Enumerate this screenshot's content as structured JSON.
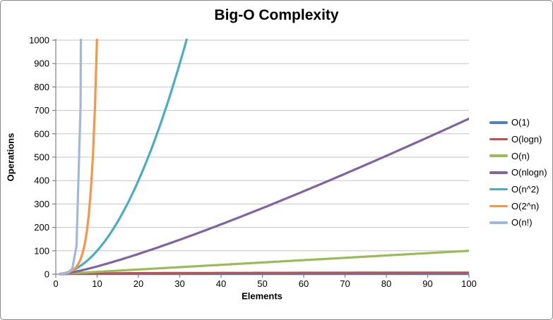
{
  "chart_data": {
    "type": "line",
    "title": "Big-O Complexity",
    "xlabel": "Elements",
    "ylabel": "Operations",
    "xlim": [
      0,
      100
    ],
    "ylim": [
      0,
      1000
    ],
    "x_ticks": [
      0,
      10,
      20,
      30,
      40,
      50,
      60,
      70,
      80,
      90,
      100
    ],
    "y_ticks": [
      0,
      100,
      200,
      300,
      400,
      500,
      600,
      700,
      800,
      900,
      1000
    ],
    "gridlines": "horizontal",
    "legend_position": "right",
    "axis_color": "#808080",
    "gridline_color": "#c3c3c3",
    "series": [
      {
        "name": "O(1)",
        "color": "#4F81BD",
        "formula": "1",
        "integer_only": false
      },
      {
        "name": "O(logn)",
        "color": "#C0504D",
        "formula": "log2(n)",
        "integer_only": false
      },
      {
        "name": "O(n)",
        "color": "#9BBB59",
        "formula": "n",
        "integer_only": false
      },
      {
        "name": "O(nlogn)",
        "color": "#8064A2",
        "formula": "n*log2(n)",
        "integer_only": false
      },
      {
        "name": "O(n^2)",
        "color": "#4BACC6",
        "formula": "n^2",
        "integer_only": false
      },
      {
        "name": "O(2^n)",
        "color": "#F79646",
        "formula": "2^n",
        "integer_only": false
      },
      {
        "name": "O(n!)",
        "color": "#A0B9DB",
        "formula": "n!",
        "integer_only": true
      }
    ]
  }
}
